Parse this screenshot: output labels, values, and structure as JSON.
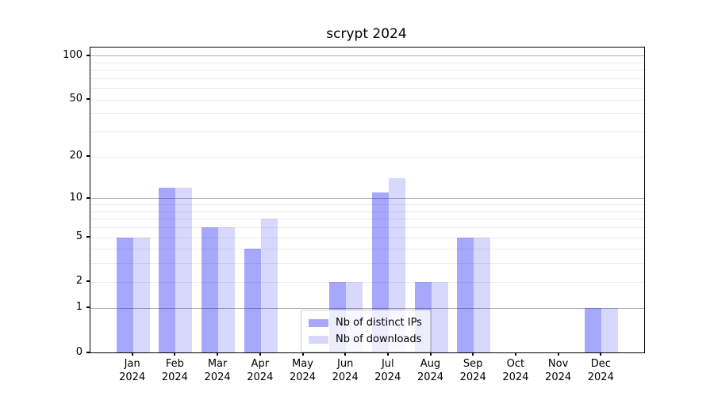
{
  "title": "scrypt 2024",
  "chart_data": {
    "type": "bar",
    "title": "scrypt 2024",
    "categories": [
      "Jan 2024",
      "Feb 2024",
      "Mar 2024",
      "Apr 2024",
      "May 2024",
      "Jun 2024",
      "Jul 2024",
      "Aug 2024",
      "Sep 2024",
      "Oct 2024",
      "Nov 2024",
      "Dec 2024"
    ],
    "series": [
      {
        "name": "Nb of distinct IPs",
        "color": "rgba(10,10,245,0.36)",
        "values": [
          5,
          12,
          6,
          4,
          0,
          2,
          11,
          2,
          5,
          0,
          0,
          1
        ]
      },
      {
        "name": "Nb of downloads",
        "color": "rgba(10,10,245,0.16)",
        "values": [
          5,
          12,
          6,
          7,
          0,
          2,
          14,
          2,
          5,
          0,
          0,
          1
        ]
      }
    ],
    "xlabel": "",
    "ylabel": "",
    "yscale": "log1p",
    "ylim": [
      0,
      114
    ],
    "ytick_labels": [
      0,
      1,
      2,
      5,
      10,
      20,
      50,
      100
    ],
    "major_gridlines": [
      1,
      10,
      100
    ],
    "minor_gridlines": [
      2,
      3,
      4,
      5,
      6,
      7,
      8,
      9,
      20,
      30,
      40,
      50,
      60,
      70,
      80,
      90
    ],
    "grid": true,
    "legend_position": "lower center"
  },
  "colors": {
    "bar_distinct_ips": "rgba(10,10,245,0.36)",
    "bar_downloads": "rgba(10,10,245,0.16)",
    "major_grid": "#b2b2b2",
    "minor_grid": "#ebebeb",
    "axis": "#000000",
    "legend_border": "#cccccc"
  }
}
